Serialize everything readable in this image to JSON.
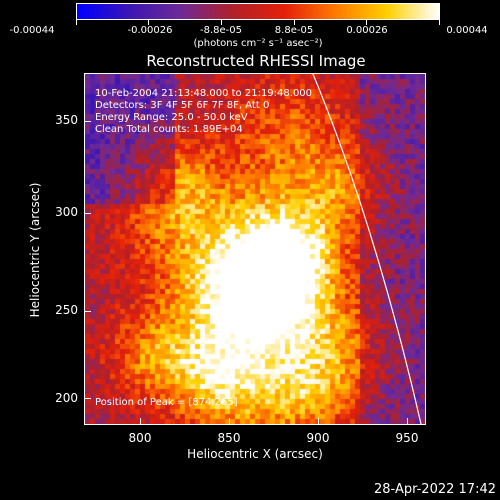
{
  "colorbar": {
    "tick_labels": [
      "-0.00044",
      "-0.00026",
      "-8.8e-05",
      "8.8e-05",
      "0.00026",
      "0.00044"
    ],
    "unit_label": "(photons cm⁻² s⁻¹ asec⁻²)",
    "colors": [
      "#0000ff",
      "#3c16b4",
      "#6e2a96",
      "#b0202a",
      "#e4200a",
      "#ff7a00",
      "#ffd000",
      "#ffffff"
    ]
  },
  "title": "Reconstructed RHESSI Image",
  "info": {
    "line1": "10-Feb-2004 21:13:48.000 to 21:19:48.000",
    "line2": "Detectors: 3F 4F 5F 6F 7F 8F, Att 0",
    "line3": "Energy Range: 25.0 - 50.0 keV",
    "line4": "Clean     Total counts: 1.89E+04",
    "peak": "Position of Peak = [874,265]"
  },
  "axes": {
    "xlabel": "Heliocentric X (arcsec)",
    "ylabel": "Heliocentric Y (arcsec)",
    "xticks": [
      "800",
      "850",
      "900",
      "950"
    ],
    "yticks": [
      "200",
      "250",
      "300",
      "350"
    ],
    "xrange": [
      765,
      960
    ],
    "yrange": [
      185,
      385
    ]
  },
  "timestamp": "28-Apr-2022 17:42"
}
